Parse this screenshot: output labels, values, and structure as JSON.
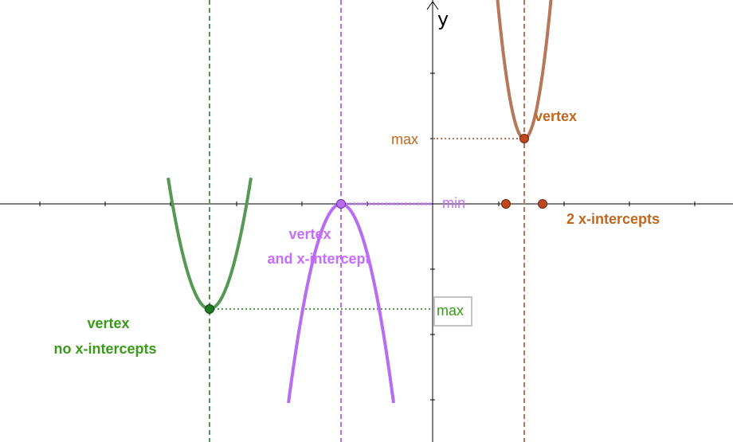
{
  "axes": {
    "y_label": "y"
  },
  "colors": {
    "purple": "#B86CF2",
    "purple_label": "#C66CFF",
    "brown": "#B8775A",
    "brown_label": "#C1661D",
    "green": "#559955",
    "green_label": "#3A9A1A",
    "axis": "#000000",
    "box_border": "#B0B0B0"
  },
  "purple_parabola": {
    "opens": "up",
    "vertex_label_1": "vertex",
    "vertex_label_2": "and x-intercept",
    "extremum_label": "min"
  },
  "brown_parabola": {
    "opens": "down",
    "vertex_label": "vertex",
    "extremum_label": "max",
    "intercepts_label": "2 x-intercepts"
  },
  "green_parabola": {
    "opens": "down",
    "vertex_label_1": "vertex",
    "vertex_label_2": "no x-intercepts",
    "extremum_label": "max"
  }
}
